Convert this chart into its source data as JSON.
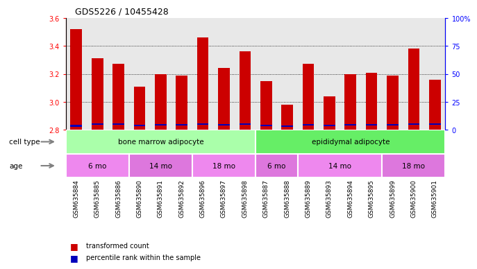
{
  "title": "GDS5226 / 10455428",
  "samples": [
    "GSM635884",
    "GSM635885",
    "GSM635886",
    "GSM635890",
    "GSM635891",
    "GSM635892",
    "GSM635896",
    "GSM635897",
    "GSM635898",
    "GSM635887",
    "GSM635888",
    "GSM635889",
    "GSM635893",
    "GSM635894",
    "GSM635895",
    "GSM635899",
    "GSM635900",
    "GSM635901"
  ],
  "red_values": [
    3.52,
    3.31,
    3.27,
    3.11,
    3.2,
    3.19,
    3.46,
    3.24,
    3.36,
    3.15,
    2.98,
    3.27,
    3.04,
    3.2,
    3.21,
    3.19,
    3.38,
    3.16
  ],
  "blue_bottoms": [
    2.82,
    2.835,
    2.835,
    2.825,
    2.83,
    2.83,
    2.835,
    2.83,
    2.835,
    2.825,
    2.82,
    2.83,
    2.825,
    2.83,
    2.83,
    2.83,
    2.835,
    2.835
  ],
  "blue_heights": [
    0.015,
    0.012,
    0.012,
    0.01,
    0.011,
    0.011,
    0.012,
    0.011,
    0.012,
    0.01,
    0.01,
    0.011,
    0.01,
    0.011,
    0.011,
    0.011,
    0.012,
    0.012
  ],
  "ymin": 2.8,
  "ymax": 3.6,
  "y_ticks_left": [
    2.8,
    3.0,
    3.2,
    3.4,
    3.6
  ],
  "y_ticks_right": [
    0,
    25,
    50,
    75,
    100
  ],
  "bar_color": "#cc0000",
  "blue_color": "#0000bb",
  "cell_type_groups": [
    {
      "label": "bone marrow adipocyte",
      "start": 0,
      "end": 9,
      "color": "#aaffaa"
    },
    {
      "label": "epididymal adipocyte",
      "start": 9,
      "end": 18,
      "color": "#66ee66"
    }
  ],
  "age_groups": [
    {
      "label": "6 mo",
      "start": 0,
      "end": 3,
      "color": "#ee88ee"
    },
    {
      "label": "14 mo",
      "start": 3,
      "end": 6,
      "color": "#dd77dd"
    },
    {
      "label": "18 mo",
      "start": 6,
      "end": 9,
      "color": "#ee88ee"
    },
    {
      "label": "6 mo",
      "start": 9,
      "end": 11,
      "color": "#dd77dd"
    },
    {
      "label": "14 mo",
      "start": 11,
      "end": 15,
      "color": "#ee88ee"
    },
    {
      "label": "18 mo",
      "start": 15,
      "end": 18,
      "color": "#dd77dd"
    }
  ],
  "legend_items": [
    {
      "label": "transformed count",
      "color": "#cc0000"
    },
    {
      "label": "percentile rank within the sample",
      "color": "#0000bb"
    }
  ],
  "bar_width": 0.55,
  "background_color": "#ffffff",
  "axis_bg_color": "#e8e8e8",
  "grid_color": "#000000",
  "grid_ticks": [
    3.0,
    3.2,
    3.4
  ]
}
